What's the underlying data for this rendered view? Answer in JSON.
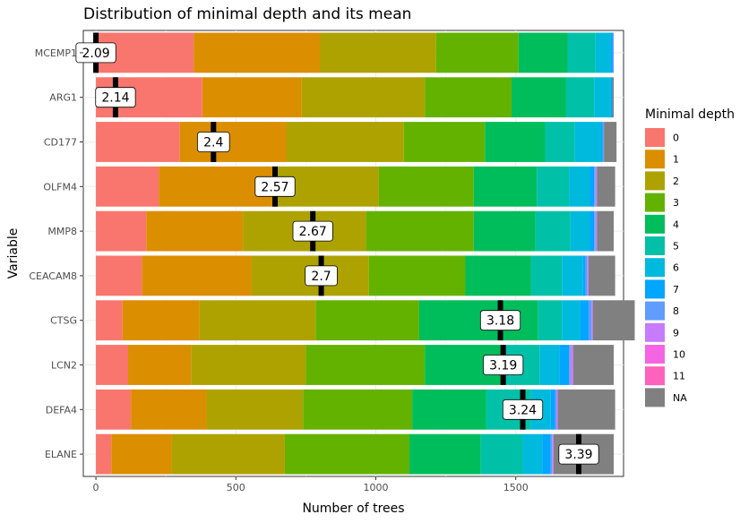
{
  "chart_data": {
    "type": "bar",
    "orientation": "horizontal",
    "stacked": true,
    "title": "Distribution of minimal depth and its mean",
    "xlabel": "Number of trees",
    "ylabel": "Variable",
    "xlim": [
      -45,
      1885
    ],
    "xticks": [
      0,
      500,
      1000,
      1500
    ],
    "grid": true,
    "legend": {
      "title": "Minimal depth",
      "placement": "right",
      "entries": [
        {
          "label": "0",
          "color": "#F8766D"
        },
        {
          "label": "1",
          "color": "#DB8E00"
        },
        {
          "label": "2",
          "color": "#AEA200"
        },
        {
          "label": "3",
          "color": "#64B200"
        },
        {
          "label": "4",
          "color": "#00BD5C"
        },
        {
          "label": "5",
          "color": "#00C1A7"
        },
        {
          "label": "6",
          "color": "#00BADE"
        },
        {
          "label": "7",
          "color": "#00A6FF"
        },
        {
          "label": "8",
          "color": "#619CFF"
        },
        {
          "label": "9",
          "color": "#C77CFF"
        },
        {
          "label": "10",
          "color": "#F564E3"
        },
        {
          "label": "11",
          "color": "#FF62BC"
        },
        {
          "label": "NA",
          "color": "#808080"
        }
      ]
    },
    "categories": [
      "MCEMP1",
      "ARG1",
      "CD177",
      "OLFM4",
      "MMP8",
      "CEACAM8",
      "CTSG",
      "LCN2",
      "DEFA4",
      "ELANE"
    ],
    "series": [
      {
        "name": "0",
        "values": [
          350,
          380,
          300,
          225,
          180,
          165,
          95,
          115,
          125,
          55
        ]
      },
      {
        "name": "1",
        "values": [
          450,
          355,
          380,
          420,
          345,
          390,
          275,
          225,
          270,
          215
        ]
      },
      {
        "name": "2",
        "values": [
          415,
          440,
          420,
          365,
          440,
          420,
          415,
          410,
          345,
          405
        ]
      },
      {
        "name": "3",
        "values": [
          295,
          310,
          290,
          340,
          385,
          345,
          370,
          425,
          390,
          445
        ]
      },
      {
        "name": "4",
        "values": [
          175,
          195,
          215,
          225,
          220,
          235,
          425,
          275,
          265,
          255
        ]
      },
      {
        "name": "5",
        "values": [
          100,
          100,
          105,
          115,
          125,
          110,
          85,
          135,
          160,
          150
        ]
      },
      {
        "name": "6",
        "values": [
          55,
          60,
          95,
          75,
          70,
          75,
          65,
          70,
          70,
          70
        ]
      },
      {
        "name": "7",
        "values": [
          5,
          5,
          5,
          15,
          15,
          10,
          30,
          35,
          15,
          30
        ]
      },
      {
        "name": "8",
        "values": [
          5,
          0,
          5,
          5,
          5,
          5,
          10,
          5,
          5,
          5
        ]
      },
      {
        "name": "9",
        "values": [
          0,
          0,
          0,
          5,
          5,
          5,
          5,
          10,
          5,
          5
        ]
      },
      {
        "name": "10",
        "values": [
          0,
          0,
          0,
          0,
          0,
          0,
          0,
          0,
          0,
          0
        ]
      },
      {
        "name": "11",
        "values": [
          0,
          0,
          0,
          0,
          0,
          0,
          0,
          0,
          0,
          0
        ]
      },
      {
        "name": "NA",
        "values": [
          0,
          5,
          45,
          65,
          60,
          95,
          150,
          145,
          205,
          215
        ]
      }
    ],
    "means": [
      {
        "value": 2.09,
        "label": "2.09",
        "marker_x": 0
      },
      {
        "value": 2.14,
        "label": "2.14",
        "marker_x": 70
      },
      {
        "value": 2.4,
        "label": "2.4",
        "marker_x": 420
      },
      {
        "value": 2.57,
        "label": "2.57",
        "marker_x": 640
      },
      {
        "value": 2.67,
        "label": "2.67",
        "marker_x": 775
      },
      {
        "value": 2.7,
        "label": "2.7",
        "marker_x": 805
      },
      {
        "value": 3.18,
        "label": "3.18",
        "marker_x": 1445
      },
      {
        "value": 3.19,
        "label": "3.19",
        "marker_x": 1455
      },
      {
        "value": 3.24,
        "label": "3.24",
        "marker_x": 1525
      },
      {
        "value": 3.39,
        "label": "3.39",
        "marker_x": 1725
      }
    ]
  }
}
